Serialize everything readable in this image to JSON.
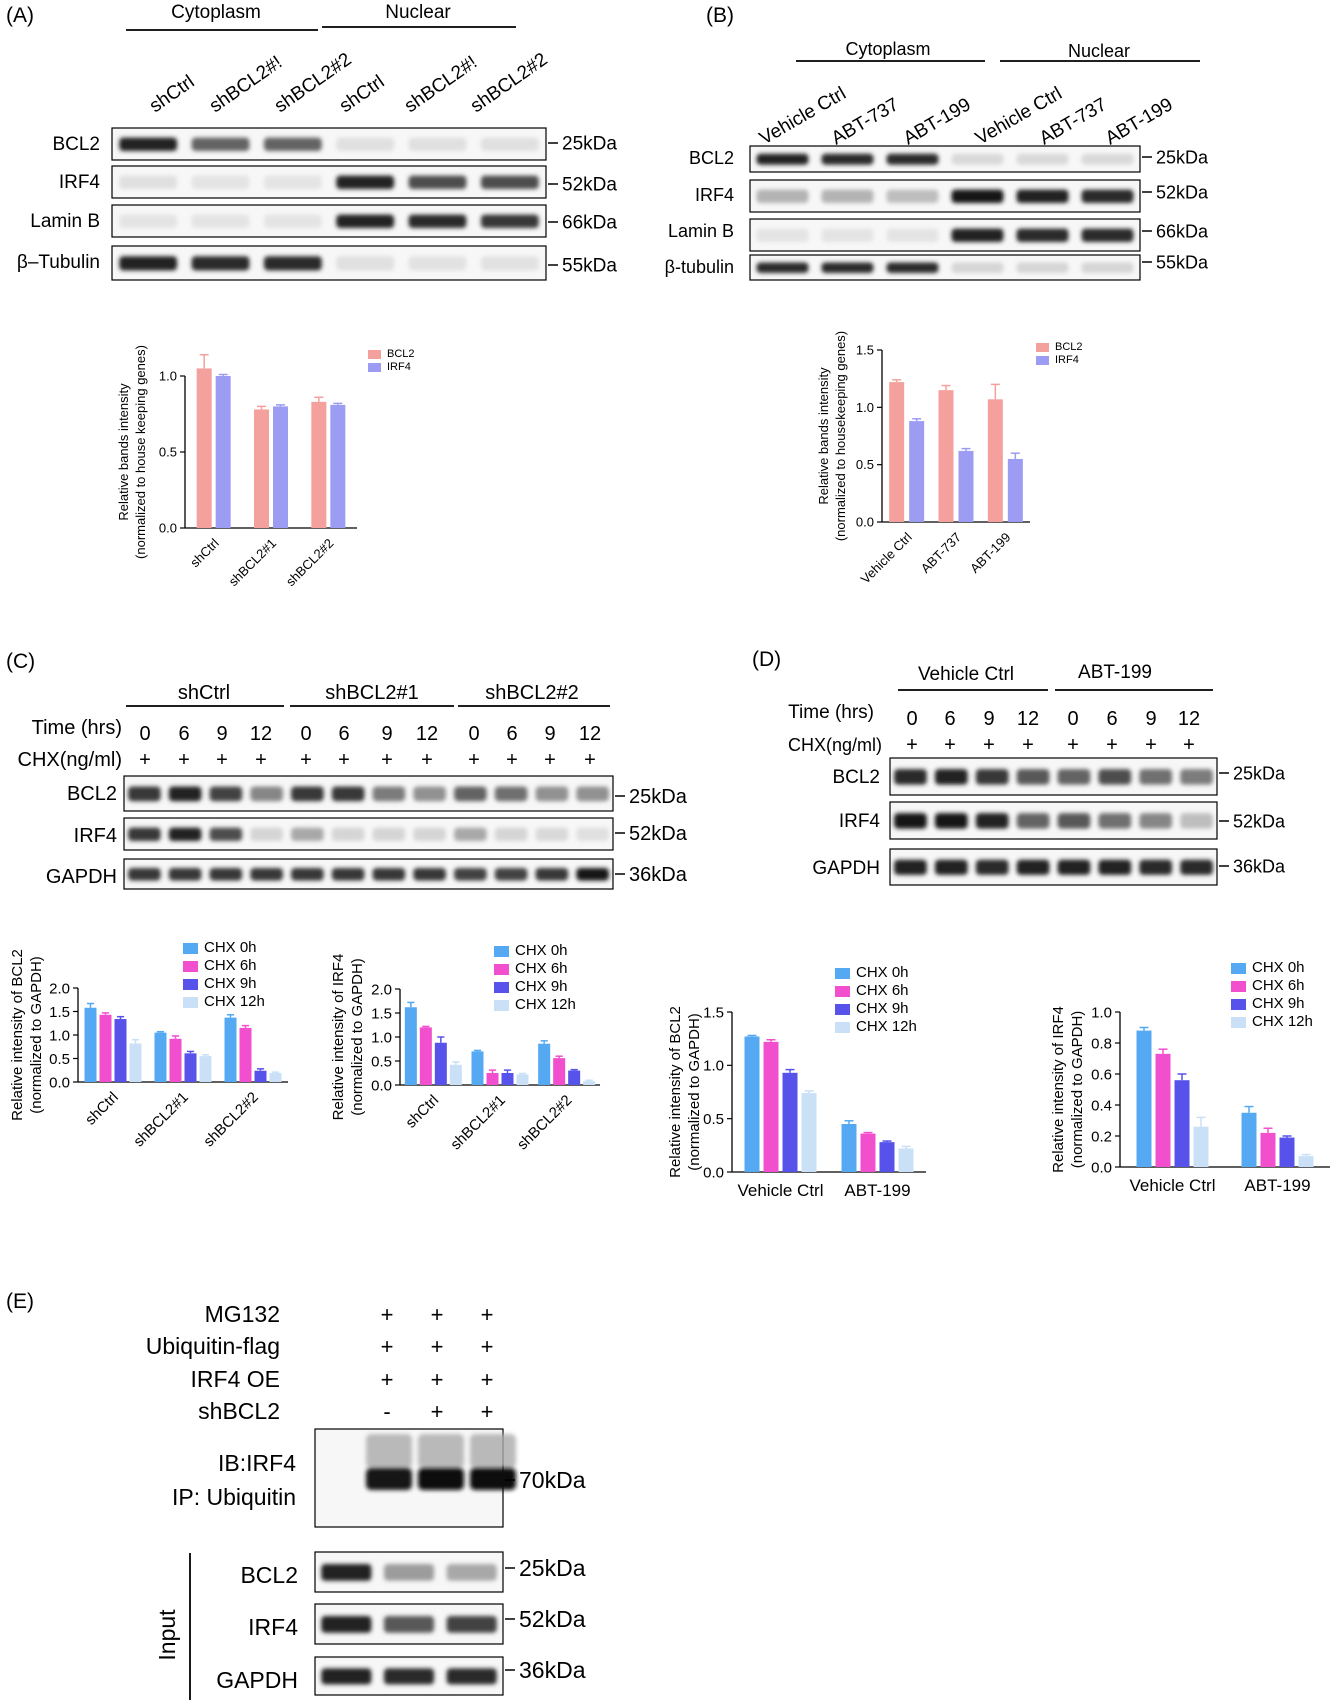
{
  "panels": {
    "A": {
      "label": "(A)",
      "groups": [
        "Cytoplasm",
        "Nuclear"
      ],
      "lanes": [
        "shCtrl",
        "shBCL2#!",
        "shBCL2#2",
        "shCtrl",
        "shBCL2#!",
        "shBCL2#2"
      ],
      "rows": [
        {
          "name": "BCL2",
          "mw": "25kDa",
          "bands": [
            0.9,
            0.6,
            0.6,
            0.05,
            0.05,
            0.05
          ]
        },
        {
          "name": "IRF4",
          "mw": "52kDa",
          "bands": [
            0.05,
            0.03,
            0.03,
            0.9,
            0.7,
            0.7
          ]
        },
        {
          "name": "Lamin B",
          "mw": "66kDa",
          "bands": [
            0.03,
            0.03,
            0.03,
            0.9,
            0.85,
            0.8
          ]
        },
        {
          "name": "β–Tubulin",
          "mw": "55kDa",
          "bands": [
            0.9,
            0.85,
            0.85,
            0.05,
            0.04,
            0.04
          ]
        }
      ]
    },
    "B": {
      "label": "(B)",
      "groups": [
        "Cytoplasm",
        "Nuclear"
      ],
      "lanes": [
        "Vehicle Ctrl",
        "ABT-737",
        "ABT-199",
        "Vehicle Ctrl",
        "ABT-737",
        "ABT-199"
      ],
      "rows": [
        {
          "name": "BCL2",
          "mw": "25kDa",
          "bands": [
            0.9,
            0.85,
            0.85,
            0.08,
            0.08,
            0.08
          ]
        },
        {
          "name": "IRF4",
          "mw": "52kDa",
          "bands": [
            0.25,
            0.25,
            0.2,
            0.95,
            0.9,
            0.85
          ]
        },
        {
          "name": "Lamin B",
          "mw": "66kDa",
          "bands": [
            0.03,
            0.03,
            0.03,
            0.9,
            0.85,
            0.85
          ]
        },
        {
          "name": "β-tubulin",
          "mw": "55kDa",
          "bands": [
            0.85,
            0.85,
            0.85,
            0.1,
            0.1,
            0.1
          ]
        }
      ]
    },
    "C": {
      "label": "(C)",
      "groups": [
        "shCtrl",
        "shBCL2#1",
        "shBCL2#2"
      ],
      "time_label": "Time (hrs)",
      "times": [
        "0",
        "6",
        "9",
        "12",
        "0",
        "6",
        "9",
        "12",
        "0",
        "6",
        "9",
        "12"
      ],
      "chx_label": "CHX(ng/ml)",
      "chx": [
        "+",
        "+",
        "+",
        "+",
        "+",
        "+",
        "+",
        "+",
        "+",
        "+",
        "+",
        "+"
      ],
      "rows": [
        {
          "name": "BCL2",
          "mw": "25kDa",
          "bands": [
            0.8,
            0.9,
            0.75,
            0.45,
            0.8,
            0.8,
            0.5,
            0.4,
            0.6,
            0.55,
            0.4,
            0.4
          ]
        },
        {
          "name": "IRF4",
          "mw": "52kDa",
          "bands": [
            0.8,
            0.9,
            0.7,
            0.1,
            0.3,
            0.1,
            0.1,
            0.1,
            0.3,
            0.1,
            0.08,
            0.05
          ]
        },
        {
          "name": "GAPDH",
          "mw": "36kDa",
          "bands": [
            0.8,
            0.8,
            0.8,
            0.8,
            0.8,
            0.8,
            0.8,
            0.8,
            0.75,
            0.75,
            0.8,
            0.95
          ]
        }
      ]
    },
    "D": {
      "label": "(D)",
      "groups": [
        "Vehicle Ctrl",
        "ABT-199"
      ],
      "time_label": "Time (hrs)",
      "times": [
        "0",
        "6",
        "9",
        "12",
        "0",
        "6",
        "9",
        "12"
      ],
      "chx_label": "CHX(ng/ml)",
      "chx": [
        "+",
        "+",
        "+",
        "+",
        "+",
        "+",
        "+",
        "+"
      ],
      "rows": [
        {
          "name": "BCL2",
          "mw": "25kDa",
          "bands": [
            0.85,
            0.9,
            0.8,
            0.65,
            0.6,
            0.7,
            0.55,
            0.5
          ]
        },
        {
          "name": "IRF4",
          "mw": "52kDa",
          "bands": [
            0.95,
            0.95,
            0.9,
            0.6,
            0.65,
            0.55,
            0.45,
            0.2
          ]
        },
        {
          "name": "GAPDH",
          "mw": "36kDa",
          "bands": [
            0.9,
            0.9,
            0.85,
            0.9,
            0.9,
            0.9,
            0.85,
            0.85
          ]
        }
      ]
    },
    "E": {
      "label": "(E)",
      "conditions": [
        {
          "name": "MG132",
          "values": [
            "+",
            "+",
            "+"
          ]
        },
        {
          "name": "Ubiquitin-flag",
          "values": [
            "+",
            "+",
            "+"
          ]
        },
        {
          "name": "IRF4 OE",
          "values": [
            "+",
            "+",
            "+"
          ]
        },
        {
          "name": "shBCL2",
          "values": [
            "-",
            "+",
            "+"
          ]
        }
      ],
      "ip_label_1": "IB:IRF4",
      "ip_label_2": "IP: Ubiquitin",
      "ip_mw": "70kDa",
      "ip_bands": [
        0.95,
        0.97,
        0.97
      ],
      "input_label": "Input",
      "rows": [
        {
          "name": "BCL2",
          "mw": "25kDa",
          "bands": [
            0.9,
            0.35,
            0.3
          ]
        },
        {
          "name": "IRF4",
          "mw": "52kDa",
          "bands": [
            0.9,
            0.65,
            0.75
          ]
        },
        {
          "name": "GAPDH",
          "mw": "36kDa",
          "bands": [
            0.9,
            0.85,
            0.85
          ]
        }
      ]
    }
  },
  "chart_data": [
    {
      "panel": "A",
      "type": "bar",
      "ylabel": "Relative bands intensity (normalized to house keeping genes)",
      "categories": [
        "shCtrl",
        "shBCL2#1",
        "shBCL2#2"
      ],
      "ylim": [
        0,
        1.0
      ],
      "yticks": [
        "0.0",
        "0.5",
        "1.0"
      ],
      "legend_position": "top-right",
      "series": [
        {
          "name": "BCL2",
          "color": "#F4A09C",
          "values": [
            1.05,
            0.78,
            0.83
          ],
          "errors": [
            0.09,
            0.02,
            0.03
          ]
        },
        {
          "name": "IRF4",
          "color": "#9B9CF2",
          "values": [
            1.0,
            0.8,
            0.81
          ],
          "errors": [
            0.01,
            0.01,
            0.01
          ]
        }
      ]
    },
    {
      "panel": "B",
      "type": "bar",
      "ylabel": "Relative bands intensity (normalized to housekeeping genes)",
      "categories": [
        "Vehicle Ctrl",
        "ABT-737",
        "ABT-199"
      ],
      "ylim": [
        0,
        1.5
      ],
      "yticks": [
        "0.0",
        "0.5",
        "1.0",
        "1.5"
      ],
      "legend_position": "top-right",
      "series": [
        {
          "name": "BCL2",
          "color": "#F4A09C",
          "values": [
            1.22,
            1.15,
            1.07
          ],
          "errors": [
            0.02,
            0.04,
            0.13
          ]
        },
        {
          "name": "IRF4",
          "color": "#9B9CF2",
          "values": [
            0.88,
            0.62,
            0.55
          ],
          "errors": [
            0.02,
            0.02,
            0.05
          ]
        }
      ]
    },
    {
      "panel": "C-BCL2",
      "type": "bar",
      "ylabel": "Relative intensity of BCL2 (normalized to GAPDH)",
      "categories": [
        "shCtrl",
        "shBCL2#1",
        "shBCL2#2"
      ],
      "ylim": [
        0,
        2.0
      ],
      "yticks": [
        "0.0",
        "0.5",
        "1.0",
        "1.5",
        "2.0"
      ],
      "legend_position": "top-right",
      "series": [
        {
          "name": "CHX 0h",
          "color": "#55A8F2",
          "values": [
            1.58,
            1.05,
            1.37
          ],
          "errors": [
            0.09,
            0.02,
            0.06
          ]
        },
        {
          "name": "CHX 6h",
          "color": "#F24FCF",
          "values": [
            1.43,
            0.92,
            1.15
          ],
          "errors": [
            0.04,
            0.06,
            0.05
          ]
        },
        {
          "name": "CHX 9h",
          "color": "#5753EA",
          "values": [
            1.34,
            0.61,
            0.24
          ],
          "errors": [
            0.05,
            0.04,
            0.04
          ]
        },
        {
          "name": "CHX 12h",
          "color": "#C9E0F6",
          "values": [
            0.82,
            0.55,
            0.19
          ],
          "errors": [
            0.08,
            0.03,
            0.02
          ]
        }
      ]
    },
    {
      "panel": "C-IRF4",
      "type": "bar",
      "ylabel": "Relative intensity of IRF4 (normalized to GAPDH)",
      "categories": [
        "shCtrl",
        "shBCL2#1",
        "shBCL2#2"
      ],
      "ylim": [
        0,
        2.0
      ],
      "yticks": [
        "0.0",
        "0.5",
        "1.0",
        "1.5",
        "2.0"
      ],
      "legend_position": "top-right",
      "series": [
        {
          "name": "CHX 0h",
          "color": "#55A8F2",
          "values": [
            1.62,
            0.7,
            0.86
          ],
          "errors": [
            0.1,
            0.02,
            0.06
          ]
        },
        {
          "name": "CHX 6h",
          "color": "#F24FCF",
          "values": [
            1.2,
            0.25,
            0.56
          ],
          "errors": [
            0.02,
            0.06,
            0.04
          ]
        },
        {
          "name": "CHX 9h",
          "color": "#5753EA",
          "values": [
            0.88,
            0.25,
            0.3
          ],
          "errors": [
            0.12,
            0.06,
            0.02
          ]
        },
        {
          "name": "CHX 12h",
          "color": "#C9E0F6",
          "values": [
            0.42,
            0.22,
            0.08
          ],
          "errors": [
            0.06,
            0.02,
            0.02
          ]
        }
      ]
    },
    {
      "panel": "D-BCL2",
      "type": "bar",
      "ylabel": "Relative intensity of BCL2 (normalized to GAPDH)",
      "categories": [
        "Vehicle Ctrl",
        "ABT-199"
      ],
      "ylim": [
        0,
        1.5
      ],
      "yticks": [
        "0.0",
        "0.5",
        "1.0",
        "1.5"
      ],
      "legend_position": "top-right",
      "series": [
        {
          "name": "CHX 0h",
          "color": "#55A8F2",
          "values": [
            1.27,
            0.45
          ],
          "errors": [
            0.01,
            0.03
          ]
        },
        {
          "name": "CHX 6h",
          "color": "#F24FCF",
          "values": [
            1.22,
            0.36
          ],
          "errors": [
            0.02,
            0.01
          ]
        },
        {
          "name": "CHX 9h",
          "color": "#5753EA",
          "values": [
            0.93,
            0.28
          ],
          "errors": [
            0.03,
            0.01
          ]
        },
        {
          "name": "CHX 12h",
          "color": "#C9E0F6",
          "values": [
            0.74,
            0.22
          ],
          "errors": [
            0.02,
            0.02
          ]
        }
      ]
    },
    {
      "panel": "D-IRF4",
      "type": "bar",
      "ylabel": "Relative intensity of IRF4 (normalized to GAPDH)",
      "categories": [
        "Vehicle Ctrl",
        "ABT-199"
      ],
      "ylim": [
        0,
        1.0
      ],
      "yticks": [
        "0.0",
        "0.2",
        "0.4",
        "0.6",
        "0.8",
        "1.0"
      ],
      "legend_position": "top-right",
      "series": [
        {
          "name": "CHX 0h",
          "color": "#55A8F2",
          "values": [
            0.88,
            0.35
          ],
          "errors": [
            0.02,
            0.04
          ]
        },
        {
          "name": "CHX 6h",
          "color": "#F24FCF",
          "values": [
            0.73,
            0.22
          ],
          "errors": [
            0.03,
            0.03
          ]
        },
        {
          "name": "CHX 9h",
          "color": "#5753EA",
          "values": [
            0.56,
            0.19
          ],
          "errors": [
            0.04,
            0.01
          ]
        },
        {
          "name": "CHX 12h",
          "color": "#C9E0F6",
          "values": [
            0.26,
            0.07
          ],
          "errors": [
            0.06,
            0.01
          ]
        }
      ]
    }
  ]
}
